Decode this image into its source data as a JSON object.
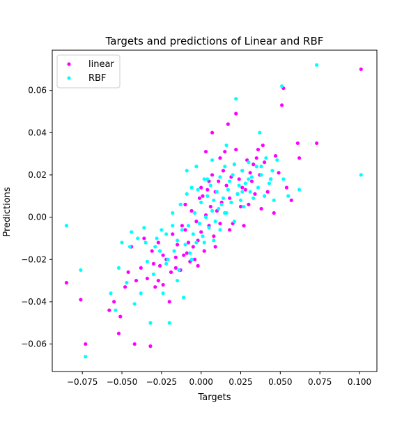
{
  "chart_data": {
    "type": "scatter",
    "title": "Targets and predictions of Linear and RBF",
    "xlabel": "Targets",
    "ylabel": "Predictions",
    "xlim": [
      -0.094,
      0.111
    ],
    "ylim": [
      -0.073,
      0.079
    ],
    "xticks": [
      -0.075,
      -0.05,
      -0.025,
      0.0,
      0.025,
      0.05,
      0.075,
      0.1
    ],
    "xtick_labels": [
      "−0.075",
      "−0.050",
      "−0.025",
      "0.000",
      "0.025",
      "0.050",
      "0.075",
      "0.100"
    ],
    "yticks": [
      -0.06,
      -0.04,
      -0.02,
      0.0,
      0.02,
      0.04,
      0.06
    ],
    "ytick_labels": [
      "−0.06",
      "−0.04",
      "−0.02",
      "0.00",
      "0.02",
      "0.04",
      "0.06"
    ],
    "grid": false,
    "legend": {
      "position": "top-left"
    },
    "series": [
      {
        "name": "linear",
        "color": "#ff00ff",
        "points": [
          [
            -0.085,
            -0.031
          ],
          [
            -0.076,
            -0.039
          ],
          [
            -0.073,
            -0.06
          ],
          [
            -0.058,
            -0.044
          ],
          [
            -0.055,
            -0.04
          ],
          [
            -0.052,
            -0.055
          ],
          [
            -0.051,
            -0.047
          ],
          [
            -0.048,
            -0.033
          ],
          [
            -0.046,
            -0.026
          ],
          [
            -0.044,
            -0.014
          ],
          [
            -0.042,
            -0.06
          ],
          [
            -0.041,
            -0.03
          ],
          [
            -0.038,
            -0.024
          ],
          [
            -0.036,
            -0.01
          ],
          [
            -0.034,
            -0.029
          ],
          [
            -0.032,
            -0.061
          ],
          [
            -0.031,
            -0.016
          ],
          [
            -0.03,
            -0.022
          ],
          [
            -0.029,
            -0.033
          ],
          [
            -0.027,
            -0.012
          ],
          [
            -0.026,
            -0.023
          ],
          [
            -0.024,
            -0.032
          ],
          [
            -0.022,
            -0.02
          ],
          [
            -0.02,
            -0.04
          ],
          [
            -0.019,
            -0.026
          ],
          [
            -0.018,
            -0.008
          ],
          [
            -0.016,
            -0.024
          ],
          [
            -0.015,
            -0.013
          ],
          [
            -0.013,
            -0.025
          ],
          [
            -0.012,
            -0.004
          ],
          [
            -0.011,
            -0.018
          ],
          [
            -0.01,
            0.006
          ],
          [
            -0.009,
            -0.017
          ],
          [
            -0.008,
            -0.012
          ],
          [
            -0.007,
            -0.021
          ],
          [
            -0.006,
            0.003
          ],
          [
            -0.005,
            -0.014
          ],
          [
            -0.004,
            -0.02
          ],
          [
            -0.003,
            -0.002
          ],
          [
            -0.002,
            -0.011
          ],
          [
            -0.001,
            0.009
          ],
          [
            0.0,
            -0.007
          ],
          [
            0.001,
            0.01
          ],
          [
            0.002,
            -0.016
          ],
          [
            0.003,
            0.001
          ],
          [
            0.004,
            0.013
          ],
          [
            0.005,
            -0.004
          ],
          [
            0.006,
            0.005
          ],
          [
            0.007,
            0.02
          ],
          [
            0.008,
            -0.009
          ],
          [
            0.009,
            0.012
          ],
          [
            0.01,
            0.003
          ],
          [
            0.011,
            0.017
          ],
          [
            0.012,
            -0.003
          ],
          [
            0.013,
            0.007
          ],
          [
            0.014,
            0.022
          ],
          [
            0.015,
            0.002
          ],
          [
            0.016,
            0.015
          ],
          [
            0.017,
            0.044
          ],
          [
            0.018,
            0.009
          ],
          [
            0.019,
            0.019
          ],
          [
            0.02,
            -0.003
          ],
          [
            0.021,
            0.025
          ],
          [
            0.022,
            0.049
          ],
          [
            0.023,
            0.011
          ],
          [
            0.024,
            0.018
          ],
          [
            0.025,
            0.005
          ],
          [
            0.026,
            0.022
          ],
          [
            0.027,
            -0.004
          ],
          [
            0.028,
            0.013
          ],
          [
            0.029,
            0.027
          ],
          [
            0.03,
            0.006
          ],
          [
            0.032,
            0.017
          ],
          [
            0.033,
            0.025
          ],
          [
            0.034,
            0.011
          ],
          [
            0.036,
            0.032
          ],
          [
            0.037,
            0.02
          ],
          [
            0.038,
            0.004
          ],
          [
            0.04,
            0.026
          ],
          [
            0.042,
            0.012
          ],
          [
            0.044,
            0.018
          ],
          [
            0.046,
            0.002
          ],
          [
            0.047,
            0.029
          ],
          [
            0.049,
            0.021
          ],
          [
            0.051,
            0.053
          ],
          [
            0.052,
            0.061
          ],
          [
            0.054,
            0.014
          ],
          [
            0.057,
            0.008
          ],
          [
            0.061,
            0.035
          ],
          [
            0.062,
            0.028
          ],
          [
            0.073,
            0.035
          ],
          [
            0.101,
            0.07
          ],
          [
            0.007,
            0.04
          ],
          [
            0.003,
            0.031
          ],
          [
            -0.01,
            -0.006
          ],
          [
            0.005,
            0.017
          ],
          [
            -0.016,
            -0.019
          ],
          [
            0.009,
            -0.014
          ],
          [
            -0.002,
            -0.023
          ],
          [
            0.012,
            0.028
          ],
          [
            0.0,
            0.014
          ],
          [
            0.015,
            0.031
          ],
          [
            -0.024,
            -0.018
          ],
          [
            -0.027,
            -0.03
          ],
          [
            0.018,
            -0.006
          ],
          [
            0.022,
            0.032
          ],
          [
            0.026,
            0.014
          ],
          [
            0.031,
            0.021
          ],
          [
            0.035,
            0.028
          ],
          [
            0.039,
            0.034
          ]
        ]
      },
      {
        "name": "RBF",
        "color": "#00ffff",
        "points": [
          [
            -0.085,
            -0.004
          ],
          [
            -0.076,
            -0.025
          ],
          [
            -0.073,
            -0.066
          ],
          [
            -0.057,
            -0.036
          ],
          [
            -0.054,
            -0.044
          ],
          [
            -0.052,
            -0.024
          ],
          [
            -0.05,
            -0.012
          ],
          [
            -0.047,
            -0.031
          ],
          [
            -0.045,
            -0.014
          ],
          [
            -0.044,
            -0.007
          ],
          [
            -0.042,
            -0.041
          ],
          [
            -0.04,
            -0.01
          ],
          [
            -0.038,
            -0.036
          ],
          [
            -0.036,
            -0.005
          ],
          [
            -0.034,
            -0.021
          ],
          [
            -0.032,
            -0.05
          ],
          [
            -0.03,
            -0.027
          ],
          [
            -0.028,
            -0.01
          ],
          [
            -0.026,
            -0.016
          ],
          [
            -0.024,
            -0.036
          ],
          [
            -0.022,
            -0.008
          ],
          [
            -0.021,
            -0.02
          ],
          [
            -0.02,
            -0.05
          ],
          [
            -0.018,
            0.002
          ],
          [
            -0.017,
            -0.016
          ],
          [
            -0.015,
            -0.011
          ],
          [
            -0.014,
            -0.025
          ],
          [
            -0.013,
            0.006
          ],
          [
            -0.012,
            -0.006
          ],
          [
            -0.011,
            -0.038
          ],
          [
            -0.01,
            -0.013
          ],
          [
            -0.009,
            0.011
          ],
          [
            -0.008,
            -0.004
          ],
          [
            -0.007,
            -0.017
          ],
          [
            -0.006,
            0.014
          ],
          [
            -0.005,
            -0.008
          ],
          [
            -0.004,
            0.002
          ],
          [
            -0.003,
            -0.012
          ],
          [
            -0.002,
            0.013
          ],
          [
            -0.001,
            -0.003
          ],
          [
            0.0,
            0.007
          ],
          [
            0.001,
            -0.009
          ],
          [
            0.002,
            0.018
          ],
          [
            0.003,
            0.0
          ],
          [
            0.004,
            0.01
          ],
          [
            0.005,
            -0.005
          ],
          [
            0.006,
            0.015
          ],
          [
            0.007,
            0.003
          ],
          [
            0.008,
            0.008
          ],
          [
            0.009,
            -0.002
          ],
          [
            0.01,
            0.012
          ],
          [
            0.011,
            0.004
          ],
          [
            0.012,
            0.019
          ],
          [
            0.013,
            0.006
          ],
          [
            0.014,
            0.009
          ],
          [
            0.015,
            0.024
          ],
          [
            0.016,
            0.002
          ],
          [
            0.017,
            0.013
          ],
          [
            0.018,
            0.017
          ],
          [
            0.019,
            0.007
          ],
          [
            0.02,
            0.02
          ],
          [
            0.021,
            0.025
          ],
          [
            0.022,
            0.056
          ],
          [
            0.023,
            0.011
          ],
          [
            0.024,
            0.015
          ],
          [
            0.025,
            0.008
          ],
          [
            0.026,
            0.022
          ],
          [
            0.027,
            0.005
          ],
          [
            0.028,
            0.016
          ],
          [
            0.03,
            0.026
          ],
          [
            0.031,
            0.012
          ],
          [
            0.032,
            0.019
          ],
          [
            0.033,
            0.009
          ],
          [
            0.035,
            0.024
          ],
          [
            0.036,
            0.014
          ],
          [
            0.037,
            0.04
          ],
          [
            0.038,
            0.02
          ],
          [
            0.04,
            0.01
          ],
          [
            0.041,
            0.028
          ],
          [
            0.043,
            0.016
          ],
          [
            0.045,
            0.022
          ],
          [
            0.046,
            0.008
          ],
          [
            0.048,
            0.027
          ],
          [
            0.051,
            0.062
          ],
          [
            0.052,
            0.018
          ],
          [
            0.055,
            0.01
          ],
          [
            0.062,
            0.013
          ],
          [
            0.073,
            0.072
          ],
          [
            0.101,
            0.02
          ],
          [
            -0.009,
            0.022
          ],
          [
            -0.003,
            0.024
          ],
          [
            0.016,
            0.034
          ],
          [
            0.004,
            0.018
          ],
          [
            -0.018,
            -0.004
          ],
          [
            0.008,
            -0.011
          ],
          [
            0.012,
            -0.006
          ],
          [
            -0.025,
            -0.006
          ],
          [
            -0.029,
            -0.014
          ],
          [
            0.015,
            0.002
          ],
          [
            0.021,
            -0.002
          ],
          [
            0.026,
            0.012
          ],
          [
            0.03,
            0.018
          ],
          [
            -0.015,
            -0.03
          ],
          [
            -0.022,
            -0.022
          ],
          [
            -0.035,
            -0.012
          ],
          [
            0.007,
            0.027
          ],
          [
            0.002,
            -0.012
          ],
          [
            -0.006,
            -0.02
          ],
          [
            0.038,
            0.024
          ],
          [
            0.044,
            0.018
          ]
        ]
      }
    ]
  }
}
